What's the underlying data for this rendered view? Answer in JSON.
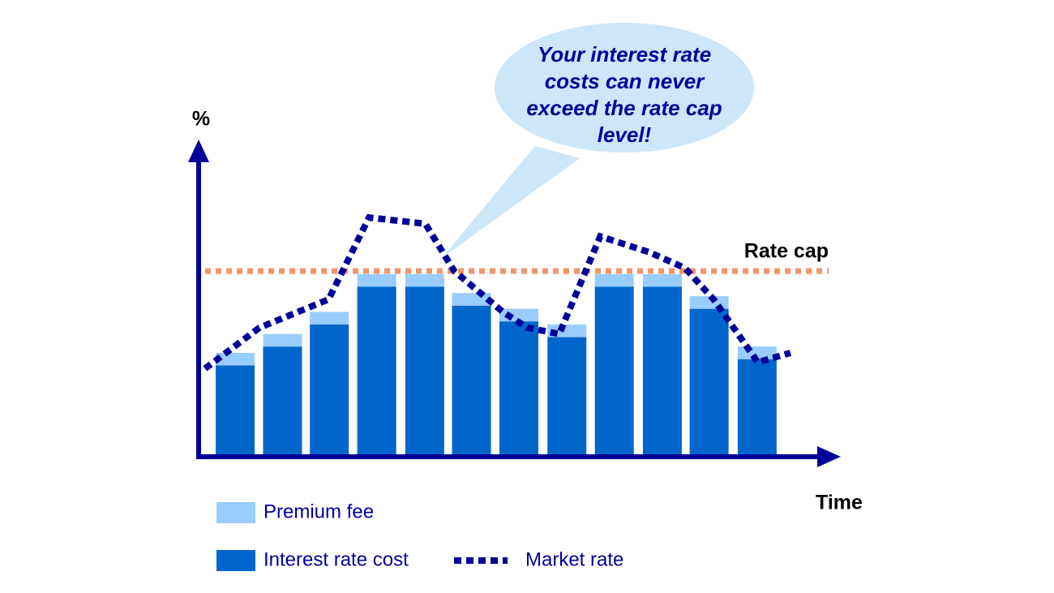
{
  "chart_data": {
    "type": "bar",
    "stacked": true,
    "ylabel": "%",
    "xlabel": "Time",
    "xlim": [
      0,
      100
    ],
    "ylim": [
      0,
      100
    ],
    "x": [
      5.7,
      13.1,
      20.4,
      27.8,
      35.3,
      42.6,
      50,
      57.5,
      64.9,
      72.4,
      79.7,
      87.2
    ],
    "series": [
      {
        "name": "Interest rate cost",
        "color": "#0066cc",
        "values": [
          29,
          35,
          42,
          54,
          54,
          48,
          43,
          38,
          54,
          54,
          47,
          31
        ]
      },
      {
        "name": "Premium fee",
        "color": "#99ccff",
        "values": [
          4,
          4,
          4,
          4,
          4,
          4,
          4,
          4,
          4,
          4,
          4,
          4
        ]
      },
      {
        "name": "Market rate",
        "type": "line",
        "dashed": true,
        "color": "#000099",
        "x": [
          1.0,
          9.5,
          20.3,
          26.6,
          35.4,
          39.9,
          47.5,
          51.3,
          56.3,
          62.7,
          70.3,
          75.9,
          80.4,
          87.3,
          92.4
        ],
        "values": [
          28,
          41,
          50,
          76,
          74,
          59,
          46,
          41,
          39,
          70,
          65,
          60,
          50,
          30,
          33
        ]
      }
    ],
    "reference_line": {
      "label": "Rate cap",
      "value": 59,
      "color": "#f0956a"
    },
    "annotation": [
      "Your interest rate",
      "costs can never",
      "exceed the rate cap",
      "level!"
    ]
  }
}
